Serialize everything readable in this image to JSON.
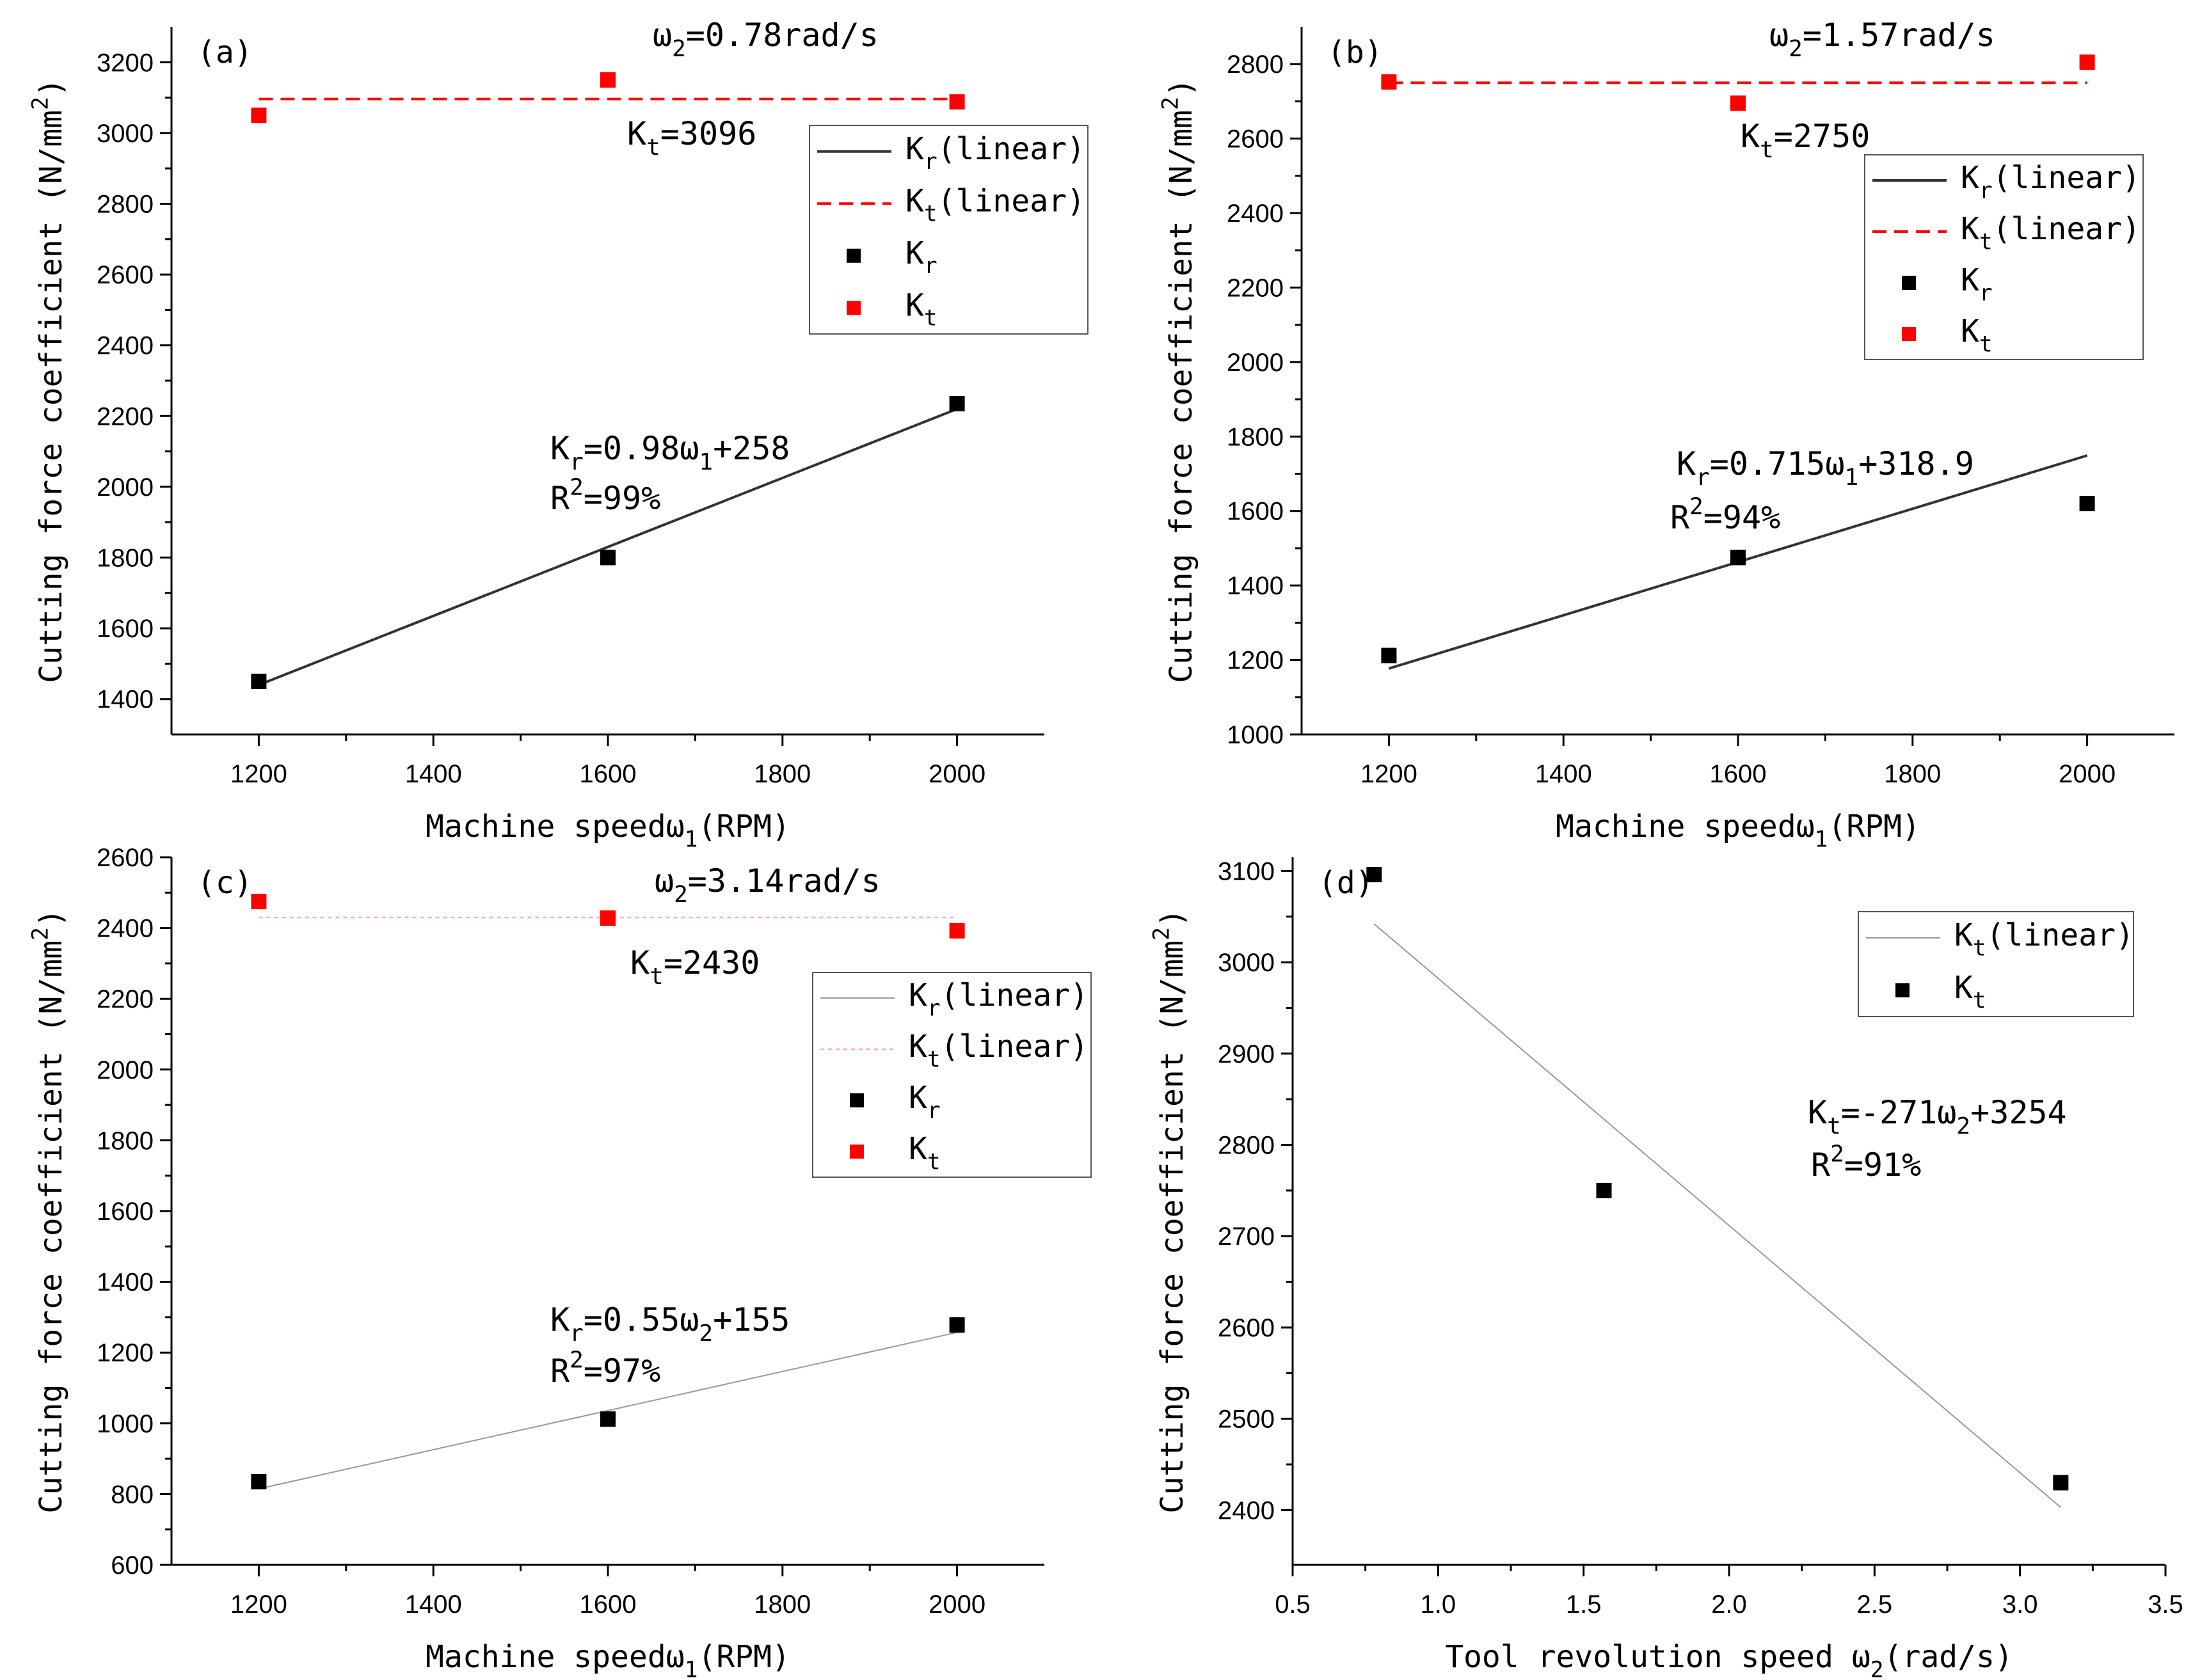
{
  "colors": {
    "kr_series": "#000000",
    "kt_series": "#ff0000",
    "kr_line_dark": "#333333",
    "kt_line_dashed": "#ff0000",
    "thin_line": "#999999",
    "thin_red_line": "#ffaaaa"
  },
  "chart_data": [
    {
      "id": "a",
      "type": "scatter",
      "panel_label": "(a)",
      "title": "",
      "xlabel": {
        "main": "Machine speedω",
        "sub": "1",
        "tail": "(RPM)"
      },
      "ylabel": {
        "main": "Cutting force coefficient (N/mm",
        "sup": "2",
        "tail": ")"
      },
      "xlim": [
        1100,
        2100
      ],
      "ylim": [
        1300,
        3300
      ],
      "xticks": [
        1200,
        1400,
        1600,
        1800,
        2000
      ],
      "xtick_labels": [
        "1200",
        "1400",
        "1600",
        "1800",
        "2000"
      ],
      "yticks": [
        1400,
        1600,
        1800,
        2000,
        2200,
        2400,
        2600,
        2800,
        3000,
        3200
      ],
      "ytick_labels": [
        "1400",
        "1600",
        "1800",
        "2000",
        "2200",
        "2400",
        "2600",
        "2800",
        "3000",
        "3200"
      ],
      "legend_position": "top-right",
      "legend": [
        {
          "kind": "line",
          "style": "solid-dark",
          "base": "K",
          "sub": "r",
          "tail": "(linear)"
        },
        {
          "kind": "line",
          "style": "dashed-red",
          "base": "K",
          "sub": "t",
          "tail": "(linear)"
        },
        {
          "kind": "marker",
          "color": "black",
          "base": "K",
          "sub": "r",
          "tail": ""
        },
        {
          "kind": "marker",
          "color": "red",
          "base": "K",
          "sub": "t",
          "tail": ""
        }
      ],
      "series": [
        {
          "name": "Kr",
          "color": "black",
          "x": [
            1200,
            1600,
            2000
          ],
          "y": [
            1450,
            1800,
            2235
          ]
        },
        {
          "name": "Kt",
          "color": "red",
          "x": [
            1200,
            1600,
            2000
          ],
          "y": [
            3050,
            3150,
            3088
          ]
        }
      ],
      "fits": [
        {
          "style": "solid-dark",
          "x": [
            1200,
            2000
          ],
          "y": [
            1440,
            2220
          ]
        },
        {
          "style": "dashed-red",
          "x": [
            1200,
            2000
          ],
          "y": [
            3096,
            3096
          ]
        }
      ],
      "annotations": [
        {
          "key": "omega",
          "parts": [
            [
              "n",
              "ω"
            ],
            [
              "sub",
              "2"
            ],
            [
              "n",
              "=0.78rad/s"
            ]
          ]
        },
        {
          "key": "kt_value",
          "parts": [
            [
              "n",
              "K"
            ],
            [
              "sub",
              "t"
            ],
            [
              "n",
              "=3096"
            ]
          ]
        },
        {
          "key": "kr_eq",
          "parts": [
            [
              "n",
              "K"
            ],
            [
              "sub",
              "r"
            ],
            [
              "n",
              "=0.98ω"
            ],
            [
              "sub",
              "1"
            ],
            [
              "n",
              "+258"
            ]
          ]
        },
        {
          "key": "r2",
          "parts": [
            [
              "n",
              "R"
            ],
            [
              "sup",
              "2"
            ],
            [
              "n",
              "=99%"
            ]
          ]
        }
      ]
    },
    {
      "id": "b",
      "type": "scatter",
      "panel_label": "(b)",
      "title": "",
      "xlabel": {
        "main": "Machine speedω",
        "sub": "1",
        "tail": "(RPM)"
      },
      "ylabel": {
        "main": "Cutting force coefficient (N/mm",
        "sup": "2",
        "tail": ")"
      },
      "xlim": [
        1100,
        2100
      ],
      "ylim": [
        1000,
        2900
      ],
      "xticks": [
        1200,
        1400,
        1600,
        1800,
        2000
      ],
      "xtick_labels": [
        "1200",
        "1400",
        "1600",
        "1800",
        "2000"
      ],
      "yticks": [
        1000,
        1200,
        1400,
        1600,
        1800,
        2000,
        2200,
        2400,
        2600,
        2800
      ],
      "ytick_labels": [
        "1000",
        "1200",
        "1400",
        "1600",
        "1800",
        "2000",
        "2200",
        "2400",
        "2600",
        "2800"
      ],
      "legend_position": "top-right",
      "legend": [
        {
          "kind": "line",
          "style": "solid-dark",
          "base": "K",
          "sub": "r",
          "tail": "(linear)"
        },
        {
          "kind": "line",
          "style": "dashed-red",
          "base": "K",
          "sub": "t",
          "tail": "(linear)"
        },
        {
          "kind": "marker",
          "color": "black",
          "base": "K",
          "sub": "r",
          "tail": ""
        },
        {
          "kind": "marker",
          "color": "red",
          "base": "K",
          "sub": "t",
          "tail": ""
        }
      ],
      "series": [
        {
          "name": "Kr",
          "color": "black",
          "x": [
            1200,
            1600,
            2000
          ],
          "y": [
            1212,
            1475,
            1620
          ]
        },
        {
          "name": "Kt",
          "color": "red",
          "x": [
            1200,
            1600,
            2000
          ],
          "y": [
            2752,
            2695,
            2805
          ]
        }
      ],
      "fits": [
        {
          "style": "solid-dark",
          "x": [
            1200,
            2000
          ],
          "y": [
            1177,
            1749
          ]
        },
        {
          "style": "dashed-red",
          "x": [
            1200,
            2000
          ],
          "y": [
            2750,
            2750
          ]
        }
      ],
      "annotations": [
        {
          "key": "omega",
          "parts": [
            [
              "n",
              "ω"
            ],
            [
              "sub",
              "2"
            ],
            [
              "n",
              "=1.57rad/s"
            ]
          ]
        },
        {
          "key": "kt_value",
          "parts": [
            [
              "n",
              "K"
            ],
            [
              "sub",
              "t"
            ],
            [
              "n",
              "=2750"
            ]
          ]
        },
        {
          "key": "kr_eq",
          "parts": [
            [
              "n",
              "K"
            ],
            [
              "sub",
              "r"
            ],
            [
              "n",
              "=0.715ω"
            ],
            [
              "sub",
              "1"
            ],
            [
              "n",
              "+318.9"
            ]
          ]
        },
        {
          "key": "r2",
          "parts": [
            [
              "n",
              "R"
            ],
            [
              "sup",
              "2"
            ],
            [
              "n",
              "=94%"
            ]
          ]
        }
      ]
    },
    {
      "id": "c",
      "type": "scatter",
      "panel_label": "(c)",
      "title": "",
      "xlabel": {
        "main": "Machine speedω",
        "sub": "1",
        "tail": "(RPM)"
      },
      "ylabel": {
        "main": "Cutting force coefficient (N/mm",
        "sup": "2",
        "tail": ")"
      },
      "xlim": [
        1100,
        2100
      ],
      "ylim": [
        600,
        2600
      ],
      "xticks": [
        1200,
        1400,
        1600,
        1800,
        2000
      ],
      "xtick_labels": [
        "1200",
        "1400",
        "1600",
        "1800",
        "2000"
      ],
      "yticks": [
        600,
        800,
        1000,
        1200,
        1400,
        1600,
        1800,
        2000,
        2200,
        2400,
        2600
      ],
      "ytick_labels": [
        "600",
        "800",
        "1000",
        "1200",
        "1400",
        "1600",
        "1800",
        "2000",
        "2200",
        "2400",
        "2600"
      ],
      "legend_position": "right",
      "legend": [
        {
          "kind": "line",
          "style": "thin-gray",
          "base": "K",
          "sub": "r",
          "tail": "(linear)"
        },
        {
          "kind": "line",
          "style": "thin-red-dotted",
          "base": "K",
          "sub": "t",
          "tail": "(linear)"
        },
        {
          "kind": "marker",
          "color": "black",
          "base": "K",
          "sub": "r",
          "tail": ""
        },
        {
          "kind": "marker",
          "color": "red",
          "base": "K",
          "sub": "t",
          "tail": ""
        }
      ],
      "series": [
        {
          "name": "Kr",
          "color": "black",
          "x": [
            1200,
            1600,
            2000
          ],
          "y": [
            835,
            1012,
            1278
          ]
        },
        {
          "name": "Kt",
          "color": "red",
          "x": [
            1200,
            1600,
            2000
          ],
          "y": [
            2475,
            2428,
            2392
          ]
        }
      ],
      "fits": [
        {
          "style": "thin-gray",
          "x": [
            1200,
            2000
          ],
          "y": [
            815,
            1257
          ]
        },
        {
          "style": "thin-red-dotted",
          "x": [
            1200,
            2000
          ],
          "y": [
            2430,
            2430
          ]
        }
      ],
      "annotations": [
        {
          "key": "omega",
          "parts": [
            [
              "n",
              "ω"
            ],
            [
              "sub",
              "2"
            ],
            [
              "n",
              "=3.14rad/s"
            ]
          ]
        },
        {
          "key": "kt_value",
          "parts": [
            [
              "n",
              "K"
            ],
            [
              "sub",
              "t"
            ],
            [
              "n",
              "=2430"
            ]
          ]
        },
        {
          "key": "kr_eq",
          "parts": [
            [
              "n",
              "K"
            ],
            [
              "sub",
              "r"
            ],
            [
              "n",
              "=0.55ω"
            ],
            [
              "sub",
              "2"
            ],
            [
              "n",
              "+155"
            ]
          ]
        },
        {
          "key": "r2",
          "parts": [
            [
              "n",
              "R"
            ],
            [
              "sup",
              "2"
            ],
            [
              "n",
              "=97%"
            ]
          ]
        }
      ]
    },
    {
      "id": "d",
      "type": "scatter",
      "panel_label": "(d)",
      "title": "",
      "xlabel": {
        "main": "Tool revolution speed ω",
        "sub": "2",
        "tail": "(rad/s)"
      },
      "ylabel": {
        "main": "Cutting force coefficient (N/mm",
        "sup": "2",
        "tail": ")"
      },
      "xlim": [
        0.5,
        3.5
      ],
      "ylim": [
        2340,
        3115
      ],
      "xticks": [
        0.5,
        1.0,
        1.5,
        2.0,
        2.5,
        3.0,
        3.5
      ],
      "xtick_labels": [
        "0.5",
        "1.0",
        "1.5",
        "2.0",
        "2.5",
        "3.0",
        "3.5"
      ],
      "yticks": [
        2400,
        2500,
        2600,
        2700,
        2800,
        2900,
        3000,
        3100
      ],
      "ytick_labels": [
        "2400",
        "2500",
        "2600",
        "2700",
        "2800",
        "2900",
        "3000",
        "3100"
      ],
      "legend_position": "top-right",
      "legend": [
        {
          "kind": "line",
          "style": "thin-gray",
          "base": "K",
          "sub": "t",
          "tail": "(linear)"
        },
        {
          "kind": "marker",
          "color": "black",
          "base": "K",
          "sub": "t",
          "tail": ""
        }
      ],
      "series": [
        {
          "name": "Kt",
          "color": "black",
          "x": [
            0.78,
            1.57,
            3.14
          ],
          "y": [
            3096,
            2750,
            2430
          ]
        }
      ],
      "fits": [
        {
          "style": "thin-gray",
          "x": [
            0.78,
            3.14
          ],
          "y": [
            3042,
            2403
          ]
        }
      ],
      "annotations": [
        {
          "key": "kt_eq",
          "parts": [
            [
              "n",
              "K"
            ],
            [
              "sub",
              "t"
            ],
            [
              "n",
              "=-271ω"
            ],
            [
              "sub",
              "2"
            ],
            [
              "n",
              "+3254"
            ]
          ]
        },
        {
          "key": "r2",
          "parts": [
            [
              "n",
              "R"
            ],
            [
              "sup",
              "2"
            ],
            [
              "n",
              "=91%"
            ]
          ]
        }
      ]
    }
  ]
}
